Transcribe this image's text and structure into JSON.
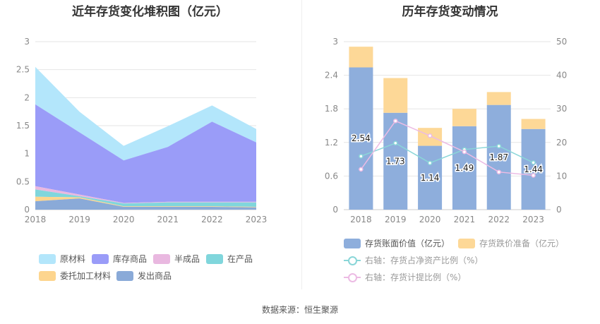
{
  "chart_data": [
    {
      "type": "area",
      "title": "近年存货变化堆积图（亿元）",
      "stacked": true,
      "x": [
        "2018",
        "2019",
        "2020",
        "2021",
        "2022",
        "2023"
      ],
      "ylim": [
        0,
        3
      ],
      "yticks": [
        "0",
        "0.5",
        "1",
        "1.5",
        "2",
        "2.5",
        "3"
      ],
      "grid": true,
      "legend_position": "bottom",
      "series": [
        {
          "name": "发出商品",
          "color": "#8aaad8",
          "values": [
            0.15,
            0.2,
            0.05,
            0.05,
            0.05,
            0.04
          ]
        },
        {
          "name": "委托加工材料",
          "color": "#fdd58e",
          "values": [
            0.08,
            0.02,
            0.01,
            0.01,
            0.01,
            0.01
          ]
        },
        {
          "name": "在产品",
          "color": "#80d6dc",
          "values": [
            0.13,
            0.02,
            0.05,
            0.07,
            0.07,
            0.08
          ]
        },
        {
          "name": "半成品",
          "color": "#e9b8e0",
          "values": [
            0.06,
            0.03,
            0.01,
            0.01,
            0.01,
            0.01
          ]
        },
        {
          "name": "库存商品",
          "color": "#9a9cf8",
          "values": [
            1.46,
            1.11,
            0.76,
            0.98,
            1.43,
            1.06
          ]
        },
        {
          "name": "原材料",
          "color": "#b3e6fb",
          "values": [
            0.67,
            0.37,
            0.26,
            0.37,
            0.29,
            0.24
          ]
        }
      ]
    },
    {
      "type": "bar",
      "title": "历年存货变动情况",
      "stacked": true,
      "categories": [
        "2018",
        "2019",
        "2020",
        "2021",
        "2022",
        "2023"
      ],
      "ylim": [
        0,
        3
      ],
      "yticks": [
        "0",
        "0.6",
        "1.2",
        "1.8",
        "2.4",
        "3"
      ],
      "y2lim": [
        0,
        50
      ],
      "y2ticks": [
        "0",
        "10",
        "20",
        "30",
        "40",
        "50"
      ],
      "grid": true,
      "legend_position": "bottom",
      "bar_series": [
        {
          "name": "存货账面价值（亿元）",
          "color": "#8eaedc",
          "values": [
            2.54,
            1.73,
            1.14,
            1.49,
            1.87,
            1.44
          ],
          "labels": [
            "2.54",
            "1.73",
            "1.14",
            "1.49",
            "1.87",
            "1.44"
          ]
        },
        {
          "name": "存货跌价准备（亿元）",
          "color": "#fdd897",
          "values": [
            0.37,
            0.62,
            0.32,
            0.31,
            0.23,
            0.18
          ]
        }
      ],
      "line_series": [
        {
          "name": "右轴：存货占净资产比例（%）",
          "color": "#8ad6d8",
          "axis": "right",
          "values": [
            15.9,
            19.8,
            13.9,
            17.9,
            18.9,
            14.0
          ]
        },
        {
          "name": "右轴：存货计提比例（%）",
          "color": "#ecbbe4",
          "axis": "right",
          "values": [
            12.0,
            26.4,
            22.0,
            17.2,
            11.2,
            10.2
          ]
        }
      ]
    }
  ],
  "source": "数据来源：恒生聚源"
}
